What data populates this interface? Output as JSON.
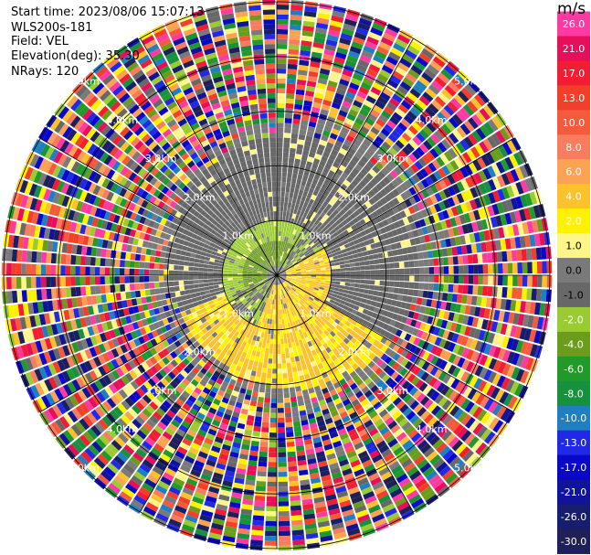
{
  "header": {
    "start_time": "Start time: 2023/08/06 15:07:13",
    "instrument": "WLS200s-181",
    "field": "Field: VEL",
    "elevation": "Elevation(deg): 35.30",
    "nrays": "NRays: 120"
  },
  "colorbar": {
    "unit": "m/s",
    "ticks": [
      "26.0",
      "21.0",
      "17.0",
      "13.0",
      "10.0",
      "8.0",
      "6.0",
      "4.0",
      "2.0",
      "1.0",
      "0.0",
      "-1.0",
      "-2.0",
      "-4.0",
      "-6.0",
      "-8.0",
      "-10.0",
      "-13.0",
      "-17.0",
      "-21.0",
      "-26.0",
      "-30.0"
    ],
    "colors": [
      "#ff3aa3",
      "#e60f5a",
      "#f21d33",
      "#f33f2a",
      "#f45a3c",
      "#f87c5e",
      "#fba352",
      "#fcc22c",
      "#fff100",
      "#fff68a",
      "#7a7a7a",
      "#686868",
      "#9bcb32",
      "#6b9c1c",
      "#229a2a",
      "#17913e",
      "#1f7fc0",
      "#2029e6",
      "#0b07c8",
      "#10149a",
      "#171e6e",
      "#202058"
    ]
  },
  "chart_data": {
    "type": "heatmap",
    "projection": "polar (PPI)",
    "field": "VEL",
    "nrays": 120,
    "range_ring_labels": [
      "1.0km",
      "2.0km",
      "3.0km",
      "4.0km",
      "5.0km"
    ],
    "range_rings_km": [
      1.0,
      2.0,
      3.0,
      4.0,
      5.0
    ],
    "radial_lines_deg": [
      0,
      30,
      60,
      90,
      120,
      150,
      180,
      210,
      240,
      270,
      300,
      330
    ],
    "max_range_km": 5.0,
    "pattern": [
      {
        "range_km": [
          0.0,
          0.9
        ],
        "azimuth_sector": "north / west",
        "velocity_m_s": [
          -2.0,
          -8.0
        ]
      },
      {
        "range_km": [
          0.0,
          1.0
        ],
        "azimuth_sector": "east / south",
        "velocity_m_s": [
          1.0,
          4.0
        ]
      },
      {
        "range_km": [
          0.9,
          2.3
        ],
        "azimuth_sector": "north-east to east",
        "velocity_m_s": [
          -1.0,
          -2.0
        ]
      },
      {
        "range_km": [
          1.0,
          2.3
        ],
        "azimuth_sector": "south to west",
        "velocity_m_s": [
          1.0,
          4.0
        ]
      },
      {
        "range_km": [
          2.3,
          5.0
        ],
        "azimuth_sector": "all",
        "velocity_m_s": "noise (random colors)"
      }
    ],
    "legend": "colorbar right",
    "grid": true
  }
}
